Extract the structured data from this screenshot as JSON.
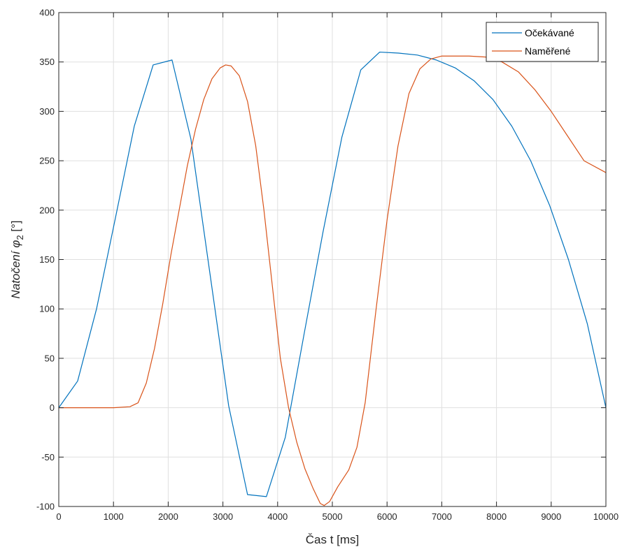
{
  "chart_data": {
    "type": "line",
    "title": "",
    "xlabel": "Čas t [ms]",
    "ylabel_main": "Natočení φ",
    "ylabel_sub": "2",
    "ylabel_unit": " [°]",
    "xlim": [
      0,
      10000
    ],
    "ylim": [
      -100,
      400
    ],
    "xticks": [
      0,
      1000,
      2000,
      3000,
      4000,
      5000,
      6000,
      7000,
      8000,
      9000,
      10000
    ],
    "yticks": [
      -100,
      -50,
      0,
      50,
      100,
      150,
      200,
      250,
      300,
      350,
      400
    ],
    "grid": true,
    "legend_position": "top-right",
    "series": [
      {
        "name": "Očekávané",
        "color": "#0072BD",
        "points": [
          [
            0,
            0
          ],
          [
            345,
            27
          ],
          [
            690,
            100
          ],
          [
            1035,
            192
          ],
          [
            1380,
            285
          ],
          [
            1725,
            347
          ],
          [
            2070,
            352
          ],
          [
            2415,
            272
          ],
          [
            2760,
            137
          ],
          [
            3105,
            2
          ],
          [
            3450,
            -88
          ],
          [
            3795,
            -90
          ],
          [
            4140,
            -30
          ],
          [
            4485,
            75
          ],
          [
            4830,
            178
          ],
          [
            5175,
            274
          ],
          [
            5520,
            342
          ],
          [
            5865,
            360
          ],
          [
            6210,
            359
          ],
          [
            6555,
            357
          ],
          [
            6900,
            352
          ],
          [
            7245,
            344
          ],
          [
            7590,
            331
          ],
          [
            7935,
            312
          ],
          [
            8280,
            285
          ],
          [
            8625,
            250
          ],
          [
            8970,
            205
          ],
          [
            9315,
            150
          ],
          [
            9660,
            85
          ],
          [
            10000,
            0
          ]
        ]
      },
      {
        "name": "Naměřené",
        "color": "#D95319",
        "points": [
          [
            0,
            0
          ],
          [
            1000,
            0
          ],
          [
            1300,
            1
          ],
          [
            1450,
            5
          ],
          [
            1600,
            25
          ],
          [
            1750,
            60
          ],
          [
            1900,
            105
          ],
          [
            2050,
            155
          ],
          [
            2200,
            200
          ],
          [
            2350,
            245
          ],
          [
            2500,
            282
          ],
          [
            2650,
            312
          ],
          [
            2800,
            333
          ],
          [
            2950,
            344
          ],
          [
            3050,
            347
          ],
          [
            3150,
            346
          ],
          [
            3300,
            336
          ],
          [
            3450,
            310
          ],
          [
            3600,
            265
          ],
          [
            3750,
            200
          ],
          [
            3900,
            125
          ],
          [
            4050,
            50
          ],
          [
            4200,
            0
          ],
          [
            4350,
            -35
          ],
          [
            4500,
            -62
          ],
          [
            4650,
            -82
          ],
          [
            4780,
            -97
          ],
          [
            4850,
            -99
          ],
          [
            4950,
            -95
          ],
          [
            5100,
            -80
          ],
          [
            5300,
            -63
          ],
          [
            5450,
            -40
          ],
          [
            5600,
            5
          ],
          [
            5800,
            100
          ],
          [
            6000,
            190
          ],
          [
            6200,
            265
          ],
          [
            6400,
            318
          ],
          [
            6600,
            343
          ],
          [
            6800,
            353
          ],
          [
            7000,
            356
          ],
          [
            7200,
            356
          ],
          [
            7500,
            356
          ],
          [
            7800,
            355
          ],
          [
            8100,
            350
          ],
          [
            8400,
            340
          ],
          [
            8700,
            322
          ],
          [
            9000,
            300
          ],
          [
            9300,
            275
          ],
          [
            9600,
            250
          ],
          [
            10000,
            238
          ]
        ]
      }
    ]
  }
}
